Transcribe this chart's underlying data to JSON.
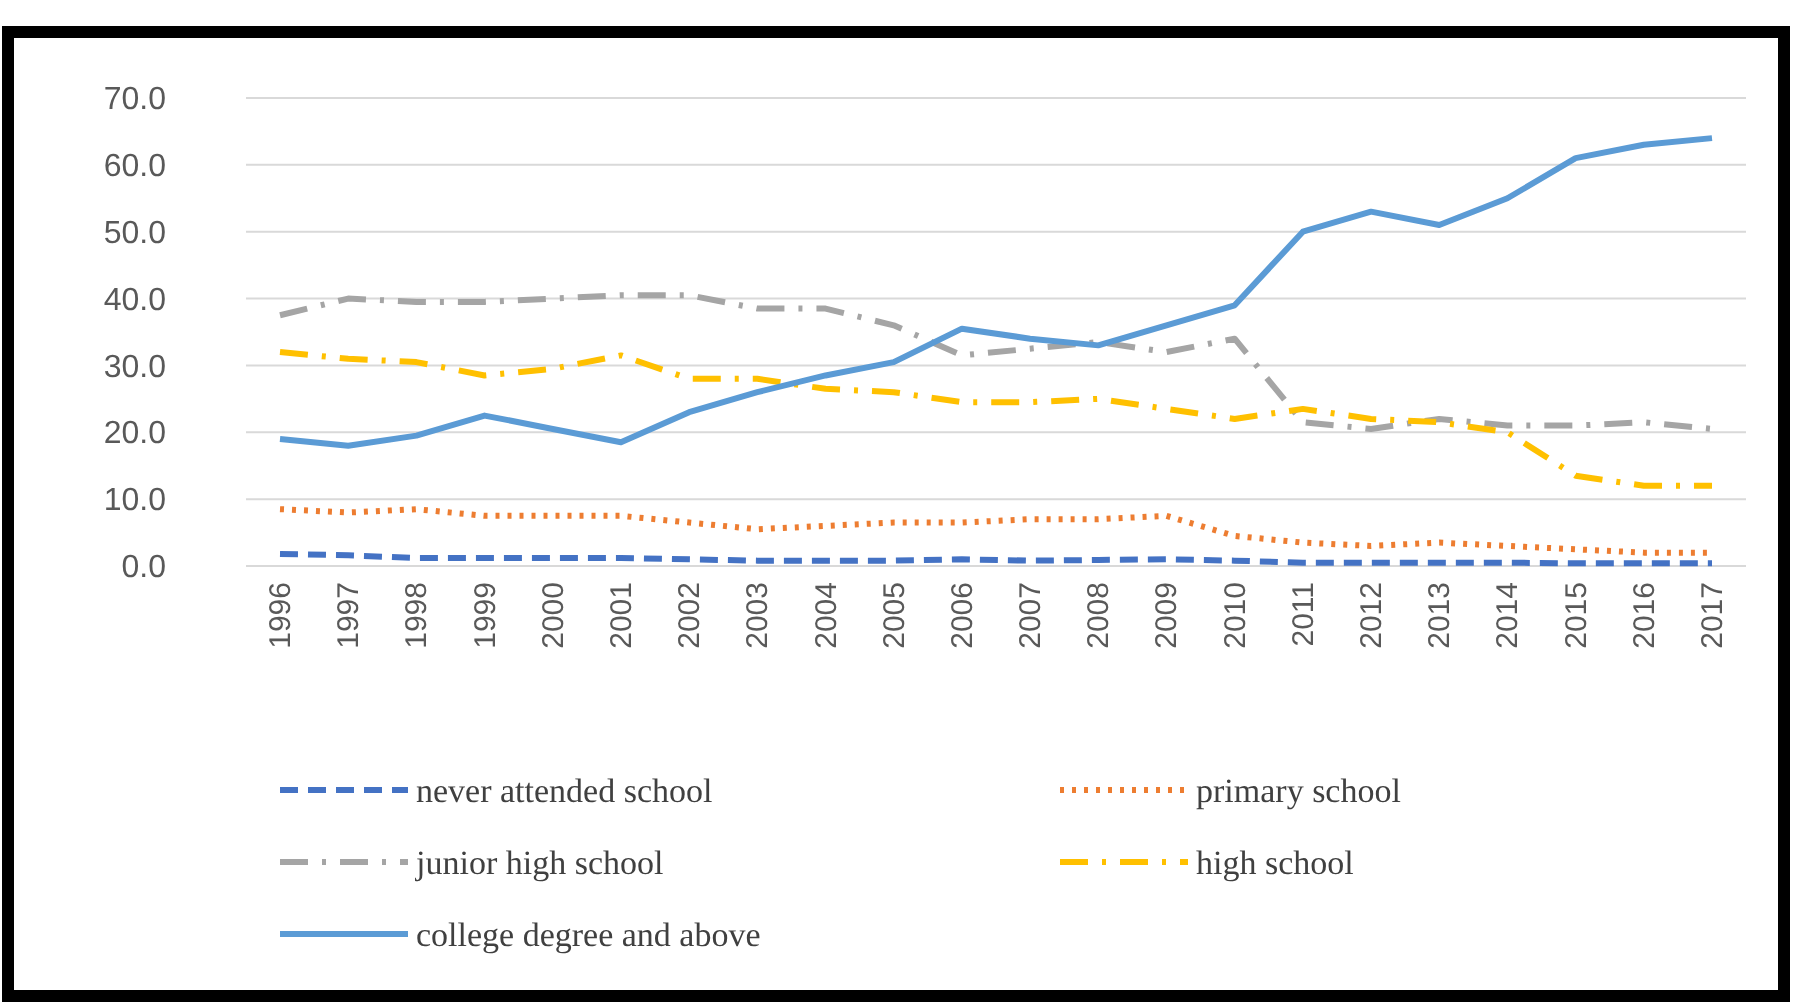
{
  "chart_data": {
    "type": "line",
    "categories": [
      "1996",
      "1997",
      "1998",
      "1999",
      "2000",
      "2001",
      "2002",
      "2003",
      "2004",
      "2005",
      "2006",
      "2007",
      "2008",
      "2009",
      "2010",
      "2011",
      "2012",
      "2013",
      "2014",
      "2015",
      "2016",
      "2017"
    ],
    "ylim": [
      0,
      70
    ],
    "yticks": [
      {
        "value": 0,
        "label": "0.0"
      },
      {
        "value": 10,
        "label": "10.0"
      },
      {
        "value": 20,
        "label": "20.0"
      },
      {
        "value": 30,
        "label": "30.0"
      },
      {
        "value": 40,
        "label": "40.0"
      },
      {
        "value": 50,
        "label": "50.0"
      },
      {
        "value": 60,
        "label": "60.0"
      },
      {
        "value": 70,
        "label": "70.0"
      }
    ],
    "grid": "y",
    "legend": "bottom",
    "marker": "none",
    "series": [
      {
        "name": "never attended school",
        "color": "#4472c4",
        "line_style": "dashed",
        "values": [
          1.8,
          1.6,
          1.2,
          1.2,
          1.2,
          1.2,
          1.0,
          0.8,
          0.8,
          0.8,
          1.0,
          0.8,
          0.9,
          1.0,
          0.8,
          0.5,
          0.5,
          0.5,
          0.5,
          0.4,
          0.4,
          0.4
        ]
      },
      {
        "name": "primary school",
        "color": "#ed7d31",
        "line_style": "dotted",
        "values": [
          8.5,
          8,
          8.5,
          7.5,
          7.5,
          7.5,
          6.5,
          5.5,
          6,
          6.5,
          6.5,
          7,
          7,
          7.5,
          4.5,
          3.5,
          3,
          3.5,
          3,
          2.5,
          2,
          2
        ]
      },
      {
        "name": "junior high school",
        "color": "#a5a5a5",
        "line_style": "dashdot",
        "values": [
          37.5,
          40,
          39.5,
          39.5,
          40,
          40.5,
          40.5,
          38.5,
          38.5,
          36,
          31.5,
          32.5,
          33.5,
          32,
          34,
          21.5,
          20.5,
          22,
          21,
          21,
          21.5,
          20.5
        ]
      },
      {
        "name": "high school",
        "color": "#ffc000",
        "line_style": "dashdot",
        "values": [
          32,
          31,
          30.5,
          28.5,
          29.5,
          31.5,
          28,
          28,
          26.5,
          26,
          24.5,
          24.5,
          25,
          23.5,
          22,
          23.5,
          22,
          21.5,
          20,
          13.5,
          12,
          12
        ]
      },
      {
        "name": "college degree and above",
        "color": "#5b9bd5",
        "line_style": "solid",
        "values": [
          19,
          18,
          19.5,
          22.5,
          20.5,
          18.5,
          23,
          26,
          28.5,
          30.5,
          35.5,
          34,
          33,
          36,
          39,
          50,
          53,
          51,
          55,
          61,
          63,
          64
        ]
      }
    ]
  }
}
